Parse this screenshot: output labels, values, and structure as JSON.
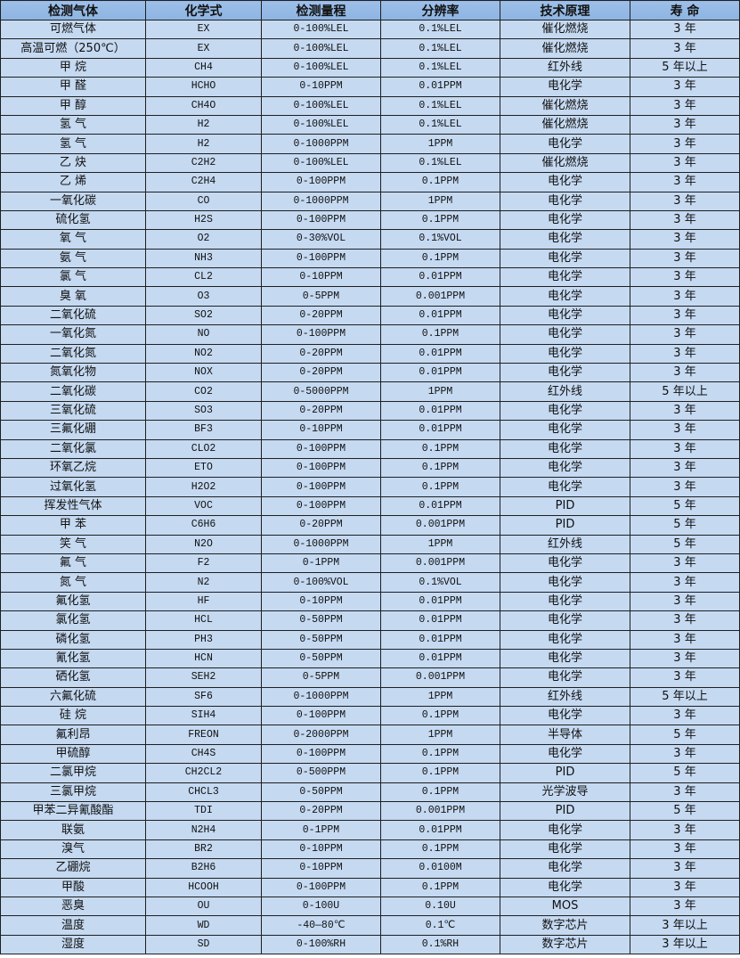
{
  "header": [
    "检测气体",
    "化学式",
    "检测量程",
    "分辨率",
    "技术原理",
    "寿 命"
  ],
  "rows": [
    [
      "可燃气体",
      "EX",
      "0-100%LEL",
      "0.1%LEL",
      "催化燃烧",
      "3 年"
    ],
    [
      "高温可燃（250℃）",
      "EX",
      "0-100%LEL",
      "0.1%LEL",
      "催化燃烧",
      "3 年"
    ],
    [
      "甲 烷",
      "CH4",
      "0-100%LEL",
      "0.1%LEL",
      "红外线",
      "5 年以上"
    ],
    [
      "甲 醛",
      "HCHO",
      "0-10PPM",
      "0.01PPM",
      "电化学",
      "3 年"
    ],
    [
      "甲 醇",
      "CH4O",
      "0-100%LEL",
      "0.1%LEL",
      "催化燃烧",
      "3 年"
    ],
    [
      "氢 气",
      "H2",
      "0-100%LEL",
      "0.1%LEL",
      "催化燃烧",
      "3 年"
    ],
    [
      "氢 气",
      "H2",
      "0-1000PPM",
      "1PPM",
      "电化学",
      "3 年"
    ],
    [
      "乙 炔",
      "C2H2",
      "0-100%LEL",
      "0.1%LEL",
      "催化燃烧",
      "3 年"
    ],
    [
      "乙 烯",
      "C2H4",
      "0-100PPM",
      "0.1PPM",
      "电化学",
      "3 年"
    ],
    [
      "一氧化碳",
      "CO",
      "0-1000PPM",
      "1PPM",
      "电化学",
      "3 年"
    ],
    [
      "硫化氢",
      "H2S",
      "0-100PPM",
      "0.1PPM",
      "电化学",
      "3 年"
    ],
    [
      "氧 气",
      "O2",
      "0-30%VOL",
      "0.1%VOL",
      "电化学",
      "3 年"
    ],
    [
      "氨 气",
      "NH3",
      "0-100PPM",
      "0.1PPM",
      "电化学",
      "3 年"
    ],
    [
      "氯 气",
      "CL2",
      "0-10PPM",
      "0.01PPM",
      "电化学",
      "3 年"
    ],
    [
      "臭 氧",
      "O3",
      "0-5PPM",
      "0.001PPM",
      "电化学",
      "3 年"
    ],
    [
      "二氧化硫",
      "SO2",
      "0-20PPM",
      "0.01PPM",
      "电化学",
      "3 年"
    ],
    [
      "一氧化氮",
      "NO",
      "0-100PPM",
      "0.1PPM",
      "电化学",
      "3 年"
    ],
    [
      "二氧化氮",
      "NO2",
      "0-20PPM",
      "0.01PPM",
      "电化学",
      "3 年"
    ],
    [
      "氮氧化物",
      "NOX",
      "0-20PPM",
      "0.01PPM",
      "电化学",
      "3 年"
    ],
    [
      "二氧化碳",
      "CO2",
      "0-5000PPM",
      "1PPM",
      "红外线",
      "5 年以上"
    ],
    [
      "三氧化硫",
      "SO3",
      "0-20PPM",
      "0.01PPM",
      "电化学",
      "3 年"
    ],
    [
      "三氟化硼",
      "BF3",
      "0-10PPM",
      "0.01PPM",
      "电化学",
      "3 年"
    ],
    [
      "二氧化氯",
      "CLO2",
      "0-100PPM",
      "0.1PPM",
      "电化学",
      "3 年"
    ],
    [
      "环氧乙烷",
      "ETO",
      "0-100PPM",
      "0.1PPM",
      "电化学",
      "3 年"
    ],
    [
      "过氧化氢",
      "H2O2",
      "0-100PPM",
      "0.1PPM",
      "电化学",
      "3 年"
    ],
    [
      "挥发性气体",
      "VOC",
      "0-100PPM",
      "0.01PPM",
      "PID",
      "5 年"
    ],
    [
      "甲 苯",
      "C6H6",
      "0-20PPM",
      "0.001PPM",
      "PID",
      "5 年"
    ],
    [
      "笑 气",
      "N2O",
      "0-1000PPM",
      "1PPM",
      "红外线",
      "5 年"
    ],
    [
      "氟 气",
      "F2",
      "0-1PPM",
      "0.001PPM",
      "电化学",
      "3 年"
    ],
    [
      "氮 气",
      "N2",
      "0-100%VOL",
      "0.1%VOL",
      "电化学",
      "3 年"
    ],
    [
      "氟化氢",
      "HF",
      "0-10PPM",
      "0.01PPM",
      "电化学",
      "3 年"
    ],
    [
      "氯化氢",
      "HCL",
      "0-50PPM",
      "0.01PPM",
      "电化学",
      "3 年"
    ],
    [
      "磷化氢",
      "PH3",
      "0-50PPM",
      "0.01PPM",
      "电化学",
      "3 年"
    ],
    [
      "氰化氢",
      "HCN",
      "0-50PPM",
      "0.01PPM",
      "电化学",
      "3 年"
    ],
    [
      "硒化氢",
      "SEH2",
      "0-5PPM",
      "0.001PPM",
      "电化学",
      "3 年"
    ],
    [
      "六氟化硫",
      "SF6",
      "0-1000PPM",
      "1PPM",
      "红外线",
      "5 年以上"
    ],
    [
      "硅 烷",
      "SIH4",
      "0-100PPM",
      "0.1PPM",
      "电化学",
      "3 年"
    ],
    [
      "氟利昂",
      "FREON",
      "0-2000PPM",
      "1PPM",
      "半导体",
      "5 年"
    ],
    [
      "甲硫醇",
      "CH4S",
      "0-100PPM",
      "0.1PPM",
      "电化学",
      "3 年"
    ],
    [
      "二氯甲烷",
      "CH2CL2",
      "0-500PPM",
      "0.1PPM",
      "PID",
      "5 年"
    ],
    [
      "三氯甲烷",
      "CHCL3",
      "0-50PPM",
      "0.1PPM",
      "光学波导",
      "3 年"
    ],
    [
      "甲苯二异氰酸酯",
      "TDI",
      "0-20PPM",
      "0.001PPM",
      "PID",
      "5 年"
    ],
    [
      "联氨",
      "N2H4",
      "0-1PPM",
      "0.01PPM",
      "电化学",
      "3 年"
    ],
    [
      "溴气",
      "BR2",
      "0-10PPM",
      "0.1PPM",
      "电化学",
      "3 年"
    ],
    [
      "乙硼烷",
      "B2H6",
      "0-10PPM",
      "0.0100M",
      "电化学",
      "3 年"
    ],
    [
      "甲酸",
      "HCOOH",
      "0-100PPM",
      "0.1PPM",
      "电化学",
      "3 年"
    ],
    [
      "恶臭",
      "OU",
      "0-100U",
      "0.10U",
      "MOS",
      "3 年"
    ],
    [
      "温度",
      "WD",
      "-40—80℃",
      "0.1℃",
      "数字芯片",
      "3 年以上"
    ],
    [
      "湿度",
      "SD",
      "0-100%RH",
      "0.1%RH",
      "数字芯片",
      "3 年以上"
    ]
  ]
}
